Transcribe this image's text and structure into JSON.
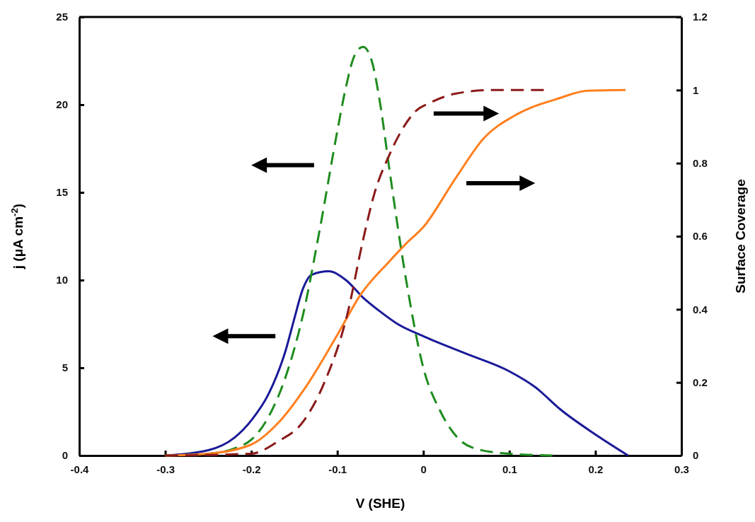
{
  "chart_data": {
    "type": "line",
    "xlabel": "V (SHE)",
    "ylabel": "j (μA cm$^{-2}$)",
    "y2label": "Surface Coverage",
    "xlim": [
      -0.4,
      0.3
    ],
    "xticks": [
      -0.4,
      -0.3,
      -0.2,
      -0.1,
      0,
      0.1,
      0.2,
      0.3
    ],
    "ylim": [
      0,
      25
    ],
    "yticks": [
      0,
      5,
      10,
      15,
      20,
      25
    ],
    "y2lim": [
      0,
      1.2
    ],
    "y2ticks": [
      0,
      0.2,
      0.4,
      0.6,
      0.8,
      1,
      1.2
    ],
    "grid": false,
    "series": [
      {
        "color": "#1a1a99",
        "line_style": "solid",
        "x": [
          -0.3,
          -0.25,
          -0.22,
          -0.2,
          -0.18,
          -0.16,
          -0.15,
          -0.14,
          -0.13,
          -0.11,
          -0.09,
          -0.07,
          -0.05,
          -0.03,
          0,
          0.05,
          0.1,
          0.13,
          0.16,
          0.2,
          0.238
        ],
        "values": [
          0,
          0.3,
          1.0,
          2.0,
          3.5,
          6.0,
          7.8,
          9.5,
          10.3,
          10.5,
          10.0,
          9.0,
          8.2,
          7.5,
          6.8,
          5.8,
          4.8,
          3.9,
          2.6,
          1.2,
          0
        ]
      },
      {
        "color": "#1e8c1e",
        "line_style": "dashed",
        "x": [
          -0.3,
          -0.25,
          -0.22,
          -0.2,
          -0.18,
          -0.16,
          -0.14,
          -0.12,
          -0.1,
          -0.09,
          -0.08,
          -0.07,
          -0.06,
          -0.05,
          -0.04,
          -0.02,
          0,
          0.02,
          0.04,
          0.06,
          0.1,
          0.15
        ],
        "values": [
          0,
          0.1,
          0.4,
          0.9,
          2.2,
          4.5,
          8,
          13,
          18.5,
          21,
          22.8,
          23.3,
          22.5,
          20,
          16.5,
          10,
          5,
          2.5,
          1.0,
          0.4,
          0.1,
          0
        ]
      },
      {
        "color": "#ff7f1e",
        "line_style": "solid",
        "axis": "y2",
        "x": [
          -0.3,
          -0.25,
          -0.2,
          -0.17,
          -0.136,
          -0.1,
          -0.073,
          -0.04,
          -0.02,
          0,
          0.037,
          0.071,
          0.106,
          0.157,
          0.191,
          0.235
        ],
        "values": [
          0,
          0.005,
          0.03,
          0.086,
          0.19,
          0.33,
          0.44,
          0.53,
          0.58,
          0.625,
          0.757,
          0.87,
          0.93,
          0.977,
          0.998,
          1.0
        ]
      },
      {
        "color": "#8b1a1a",
        "line_style": "dashed",
        "axis": "y2",
        "x": [
          -0.3,
          -0.2,
          -0.17,
          -0.139,
          -0.115,
          -0.088,
          -0.071,
          -0.057,
          -0.04,
          -0.032,
          -0.005,
          0.003,
          0.037,
          0.08,
          0.14
        ],
        "values": [
          0,
          0.005,
          0.037,
          0.095,
          0.2,
          0.39,
          0.58,
          0.716,
          0.82,
          0.86,
          0.95,
          0.96,
          0.99,
          1.0,
          1.0
        ]
      }
    ]
  }
}
